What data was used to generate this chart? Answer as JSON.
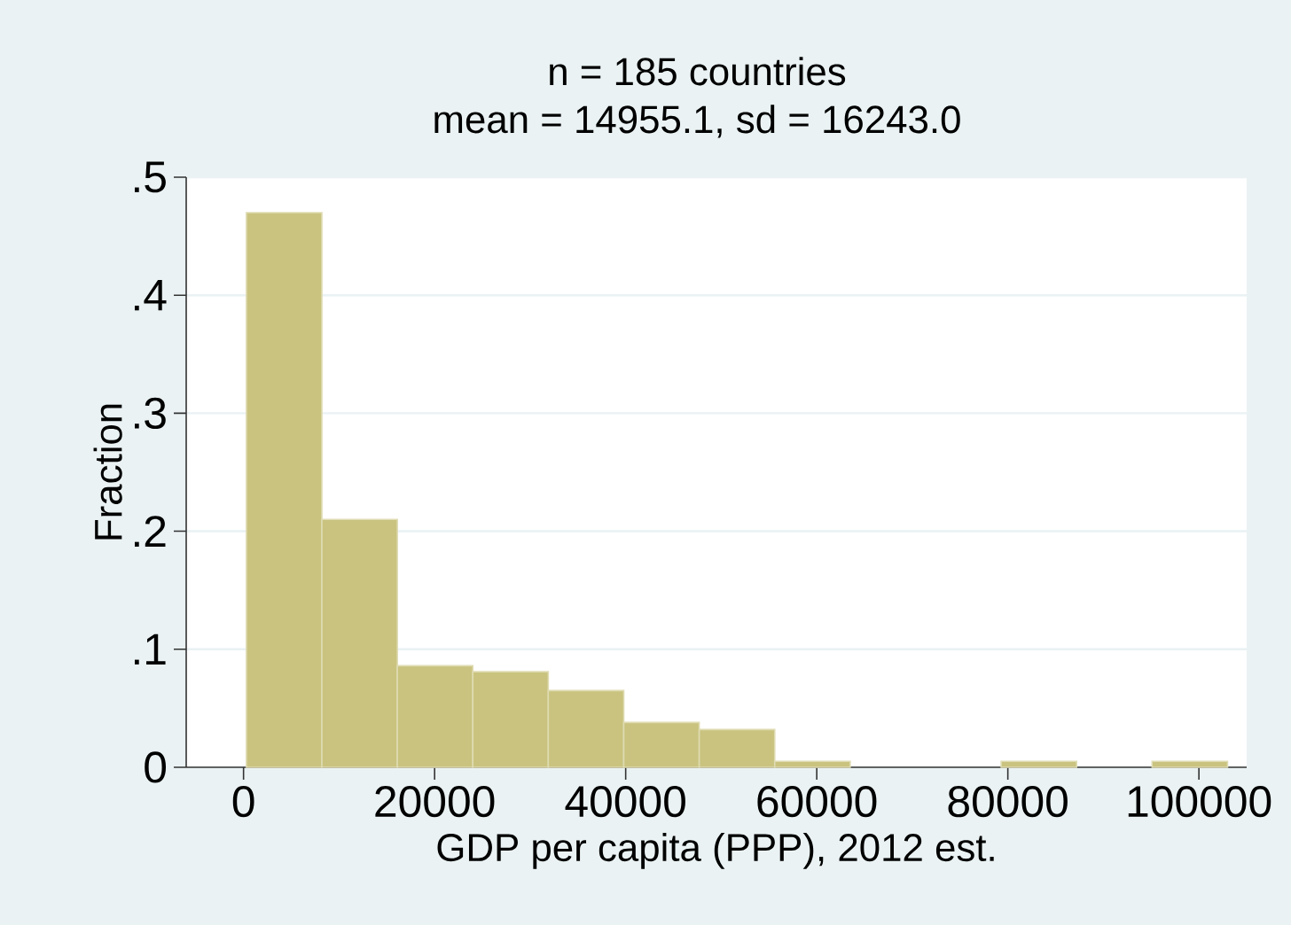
{
  "chart_data": {
    "type": "histogram",
    "title": "n = 185 countries",
    "subtitle": "mean = 14955.1, sd = 16243.0",
    "xlabel": "GDP per capita (PPP), 2012 est.",
    "ylabel": "Fraction",
    "bins": [
      300,
      8200,
      16100,
      24000,
      31900,
      39800,
      47700,
      55600,
      63500,
      71400,
      79300,
      87200,
      95100,
      103000
    ],
    "values": [
      0.47,
      0.21,
      0.086,
      0.081,
      0.065,
      0.038,
      0.032,
      0.005,
      0,
      0,
      0.005,
      0,
      0.005
    ],
    "color": "#c9c37f",
    "xlim": [
      -6000,
      105000
    ],
    "ylim": [
      0,
      0.5
    ],
    "xticks": [
      0,
      20000,
      40000,
      60000,
      80000,
      100000
    ],
    "yticks": [
      0,
      {
        "value": 0.1,
        "label": ".1"
      },
      {
        "value": 0.2,
        "label": ".2"
      },
      {
        "value": 0.3,
        "label": ".3"
      },
      {
        "value": 0.4,
        "label": ".4"
      },
      {
        "value": 0.5,
        "label": ".5"
      }
    ],
    "grid": "y",
    "legend": false
  }
}
